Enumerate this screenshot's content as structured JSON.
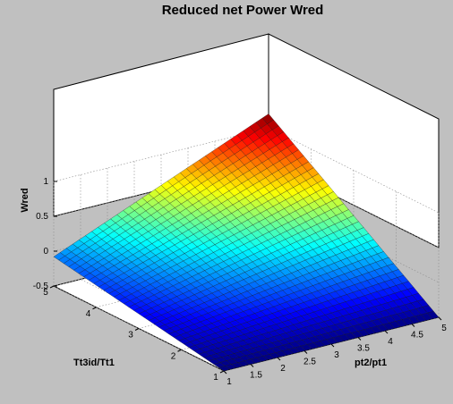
{
  "chart_data": {
    "type": "surface",
    "title": "Reduced net Power Wred",
    "xlabel": "pt2/pt1",
    "ylabel": "Tt3id/Tt1",
    "zlabel": "Wred",
    "xlim": [
      1,
      5
    ],
    "ylim": [
      1,
      5
    ],
    "zlim": [
      -0.5,
      1
    ],
    "x_ticks": [
      "1",
      "1.5",
      "2",
      "2.5",
      "3",
      "3.5",
      "4",
      "4.5",
      "5"
    ],
    "y_ticks": [
      "1",
      "2",
      "3",
      "4",
      "5"
    ],
    "z_ticks": [
      "-0.5",
      "0",
      "0.5",
      "1"
    ],
    "grid": true,
    "colormap": "jet",
    "surface_corners": [
      {
        "x": 1,
        "y": 1,
        "z": -0.5
      },
      {
        "x": 1,
        "y": 5,
        "z": -0.08
      },
      {
        "x": 5,
        "y": 5,
        "z": 1.2
      },
      {
        "x": 5,
        "y": 1,
        "z": -0.5
      }
    ],
    "background_color": "#c0c0c0",
    "axes_color": "#ffffff"
  }
}
